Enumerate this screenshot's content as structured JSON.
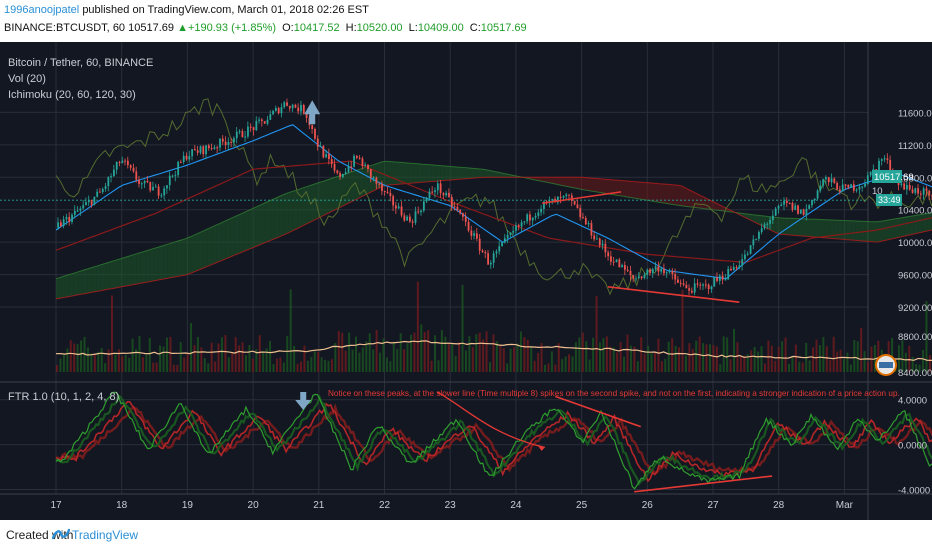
{
  "header": {
    "user": "1996anoojpatel",
    "published_text": "published on TradingView.com, March 01, 2018 02:26 EST",
    "symbol": "BINANCE:BTCUSDT,",
    "timeframe": "60",
    "last_price": "10517.69",
    "change": "▲+190.93 (+1.85%)",
    "open_label": "O:",
    "open": "10417.52",
    "high_label": "H:",
    "high": "10520.00",
    "low_label": "L:",
    "low": "10409.00",
    "close_label": "C:",
    "close": "10517.69"
  },
  "legend": {
    "title": "Bitcoin / Tether, 60, BINANCE",
    "vol": "Vol (20)",
    "ichimoku": "Ichimoku (20, 60, 120, 30)",
    "ftr": "FTR 1.0 (10, 1, 2, 4, 8)"
  },
  "annotation": "Notice on these peaks, at the slower line (Time multiple 8) spikes on the second spike, and not on the first, indicating a stronger indication of a price action up.",
  "price_badge": "10517.69",
  "price_badge_sub": "33:49",
  "price_badge_tail": "10",
  "footer": {
    "created_with": "Created with",
    "brand": "TradingView"
  },
  "colors": {
    "background": "#131722",
    "grid": "#2a2e39",
    "candle_up": "#26a69a",
    "candle_down": "#ef5350",
    "tenkan": "#2196f3",
    "kijun": "#8b1a1a",
    "lagging": "#556b2f",
    "cloud_bull": "#1e5a28",
    "cloud_bear": "#6b1a1a",
    "trendline": "#e53935",
    "arrow": "#7fa6c4",
    "vol_ma": "#f0c090",
    "ftr_green": "#2e9e2e",
    "ftr_red": "#c62828"
  },
  "chart_data": [
    {
      "type": "candlestick",
      "name": "Bitcoin / Tether, 60, BINANCE",
      "x_ticks": [
        "17",
        "18",
        "19",
        "20",
        "21",
        "22",
        "23",
        "24",
        "25",
        "26",
        "27",
        "28",
        "Mar"
      ],
      "y_ticks": [
        11600,
        11200,
        10800,
        10400,
        10000,
        9600,
        9200
      ],
      "ylim": [
        8350,
        11950
      ],
      "grid": true,
      "close_path": [
        {
          "t": 0.0,
          "p": 10180
        },
        {
          "t": 0.3,
          "p": 10350
        },
        {
          "t": 0.7,
          "p": 10620
        },
        {
          "t": 1.0,
          "p": 11020
        },
        {
          "t": 1.3,
          "p": 10720
        },
        {
          "t": 1.6,
          "p": 10620
        },
        {
          "t": 2.0,
          "p": 11080
        },
        {
          "t": 2.4,
          "p": 11180
        },
        {
          "t": 2.8,
          "p": 11320
        },
        {
          "t": 3.2,
          "p": 11500
        },
        {
          "t": 3.5,
          "p": 11720
        },
        {
          "t": 3.8,
          "p": 11620
        },
        {
          "t": 4.0,
          "p": 11200
        },
        {
          "t": 4.3,
          "p": 10800
        },
        {
          "t": 4.6,
          "p": 11050
        },
        {
          "t": 5.0,
          "p": 10600
        },
        {
          "t": 5.4,
          "p": 10250
        },
        {
          "t": 5.8,
          "p": 10700
        },
        {
          "t": 6.2,
          "p": 10300
        },
        {
          "t": 6.6,
          "p": 9750
        },
        {
          "t": 7.0,
          "p": 10150
        },
        {
          "t": 7.4,
          "p": 10450
        },
        {
          "t": 7.8,
          "p": 10550
        },
        {
          "t": 8.1,
          "p": 10200
        },
        {
          "t": 8.4,
          "p": 9850
        },
        {
          "t": 8.8,
          "p": 9550
        },
        {
          "t": 9.2,
          "p": 9700
        },
        {
          "t": 9.6,
          "p": 9420
        },
        {
          "t": 9.9,
          "p": 9450
        },
        {
          "t": 10.2,
          "p": 9600
        },
        {
          "t": 10.5,
          "p": 9820
        },
        {
          "t": 10.8,
          "p": 10220
        },
        {
          "t": 11.1,
          "p": 10480
        },
        {
          "t": 11.4,
          "p": 10350
        },
        {
          "t": 11.7,
          "p": 10780
        },
        {
          "t": 12.0,
          "p": 10650
        },
        {
          "t": 12.3,
          "p": 10720
        },
        {
          "t": 12.6,
          "p": 11050
        },
        {
          "t": 12.9,
          "p": 10680
        },
        {
          "t": 13.2,
          "p": 10620
        },
        {
          "t": 13.4,
          "p": 10480
        },
        {
          "t": 13.6,
          "p": 10517.69
        }
      ],
      "tenkan_path": [
        {
          "t": 0.0,
          "p": 10150
        },
        {
          "t": 1.0,
          "p": 10700
        },
        {
          "t": 2.0,
          "p": 10950
        },
        {
          "t": 3.0,
          "p": 11250
        },
        {
          "t": 3.6,
          "p": 11450
        },
        {
          "t": 4.3,
          "p": 11000
        },
        {
          "t": 5.0,
          "p": 10700
        },
        {
          "t": 6.0,
          "p": 10450
        },
        {
          "t": 6.8,
          "p": 10000
        },
        {
          "t": 7.6,
          "p": 10350
        },
        {
          "t": 8.4,
          "p": 10050
        },
        {
          "t": 9.3,
          "p": 9650
        },
        {
          "t": 10.2,
          "p": 9550
        },
        {
          "t": 11.0,
          "p": 10100
        },
        {
          "t": 12.0,
          "p": 10650
        },
        {
          "t": 12.8,
          "p": 10850
        },
        {
          "t": 13.6,
          "p": 10600
        }
      ],
      "kijun_path": [
        {
          "t": 0.0,
          "p": 9900
        },
        {
          "t": 1.5,
          "p": 10350
        },
        {
          "t": 3.0,
          "p": 10900
        },
        {
          "t": 4.5,
          "p": 11000
        },
        {
          "t": 6.0,
          "p": 10500
        },
        {
          "t": 7.5,
          "p": 10050
        },
        {
          "t": 9.0,
          "p": 9850
        },
        {
          "t": 10.5,
          "p": 9750
        },
        {
          "t": 11.5,
          "p": 10050
        },
        {
          "t": 12.5,
          "p": 10150
        },
        {
          "t": 13.6,
          "p": 10350
        }
      ],
      "cloud_span_a": [
        {
          "t": 0.0,
          "p": 9550
        },
        {
          "t": 2.0,
          "p": 10050
        },
        {
          "t": 3.5,
          "p": 10600
        },
        {
          "t": 5.0,
          "p": 11000
        },
        {
          "t": 6.5,
          "p": 10900
        },
        {
          "t": 8.0,
          "p": 10650
        },
        {
          "t": 9.5,
          "p": 10450
        },
        {
          "t": 11.0,
          "p": 10300
        },
        {
          "t": 12.5,
          "p": 10250
        },
        {
          "t": 13.6,
          "p": 10400
        }
      ],
      "cloud_span_b": [
        {
          "t": 0.0,
          "p": 9300
        },
        {
          "t": 2.0,
          "p": 9600
        },
        {
          "t": 3.5,
          "p": 10100
        },
        {
          "t": 5.0,
          "p": 10700
        },
        {
          "t": 6.5,
          "p": 10800
        },
        {
          "t": 8.0,
          "p": 10800
        },
        {
          "t": 9.5,
          "p": 10700
        },
        {
          "t": 11.0,
          "p": 10100
        },
        {
          "t": 12.5,
          "p": 10000
        },
        {
          "t": 13.6,
          "p": 10200
        }
      ],
      "trendlines": [
        {
          "t1": 7.4,
          "p1": 10480,
          "t2": 8.6,
          "p2": 10620
        },
        {
          "t1": 8.4,
          "p1": 9450,
          "t2": 10.4,
          "p2": 9260
        }
      ]
    },
    {
      "type": "bar",
      "name": "Vol (20)",
      "ylim": [
        0,
        1
      ],
      "volume_ma_path": [
        {
          "t": 0.0,
          "v": 0.22
        },
        {
          "t": 2.0,
          "v": 0.24
        },
        {
          "t": 3.8,
          "v": 0.26
        },
        {
          "t": 4.5,
          "v": 0.34
        },
        {
          "t": 5.5,
          "v": 0.38
        },
        {
          "t": 7.0,
          "v": 0.33
        },
        {
          "t": 8.5,
          "v": 0.28
        },
        {
          "t": 10.0,
          "v": 0.2
        },
        {
          "t": 11.5,
          "v": 0.18
        },
        {
          "t": 13.6,
          "v": 0.15
        }
      ]
    },
    {
      "type": "line",
      "name": "FTR 1.0 (10, 1, 2, 4, 8)",
      "y_ticks": [
        "4.0000",
        "0.0000",
        "-4.0000"
      ],
      "y_tick_values": [
        4,
        0,
        -4
      ],
      "ylim": [
        -4.4,
        5.4
      ],
      "peaks": [
        {
          "t": 0.1,
          "v": -1.5
        },
        {
          "t": 0.9,
          "v": 4.8
        },
        {
          "t": 1.4,
          "v": -0.5
        },
        {
          "t": 1.9,
          "v": 3.8
        },
        {
          "t": 2.3,
          "v": -1.0
        },
        {
          "t": 2.9,
          "v": 3.2
        },
        {
          "t": 3.3,
          "v": -0.6
        },
        {
          "t": 3.95,
          "v": 4.6
        },
        {
          "t": 4.5,
          "v": -2.2
        },
        {
          "t": 4.9,
          "v": 1.8
        },
        {
          "t": 5.4,
          "v": -1.8
        },
        {
          "t": 6.1,
          "v": 2.3
        },
        {
          "t": 6.6,
          "v": -3.0
        },
        {
          "t": 7.1,
          "v": 0.8
        },
        {
          "t": 7.6,
          "v": 3.4
        },
        {
          "t": 8.0,
          "v": 0.2
        },
        {
          "t": 8.3,
          "v": 2.9
        },
        {
          "t": 8.8,
          "v": -3.9
        },
        {
          "t": 9.2,
          "v": -1.0
        },
        {
          "t": 9.5,
          "v": -2.2
        },
        {
          "t": 9.9,
          "v": -3.3
        },
        {
          "t": 10.4,
          "v": -2.8
        },
        {
          "t": 10.8,
          "v": 2.3
        },
        {
          "t": 11.2,
          "v": 0.0
        },
        {
          "t": 11.5,
          "v": 2.6
        },
        {
          "t": 11.9,
          "v": -0.5
        },
        {
          "t": 12.2,
          "v": 2.5
        },
        {
          "t": 12.5,
          "v": 0.2
        },
        {
          "t": 12.9,
          "v": 3.1
        },
        {
          "t": 13.3,
          "v": -1.9
        },
        {
          "t": 13.6,
          "v": -0.8
        }
      ],
      "trendlines": [
        {
          "t1": 7.6,
          "v1": 4.3,
          "t2": 8.9,
          "v2": 1.6
        },
        {
          "t1": 8.8,
          "v1": -4.2,
          "t2": 10.9,
          "v2": -2.8
        }
      ]
    }
  ]
}
